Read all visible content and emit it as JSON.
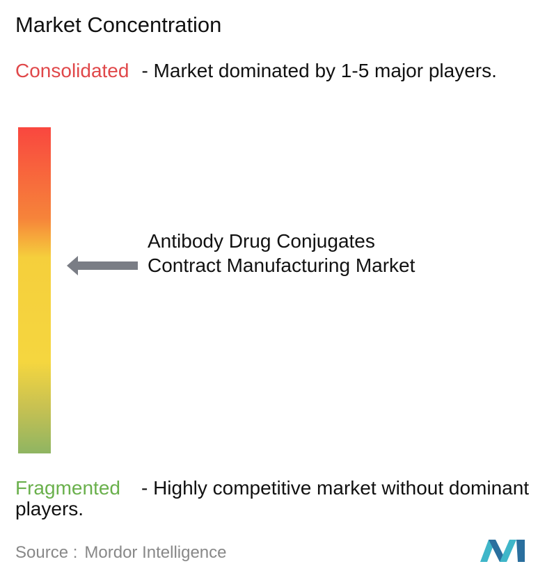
{
  "title": "Market Concentration",
  "consolidated": {
    "label": "Consolidated",
    "description": "- Market dominated by 1-5 major players."
  },
  "marker": {
    "label": "Antibody Drug Conjugates Contract Manufacturing Market"
  },
  "fragmented": {
    "label": "Fragmented",
    "description": "- Highly competitive market without dominant players."
  },
  "source": {
    "label": "Source :",
    "name": "Mordor Intelligence"
  }
}
